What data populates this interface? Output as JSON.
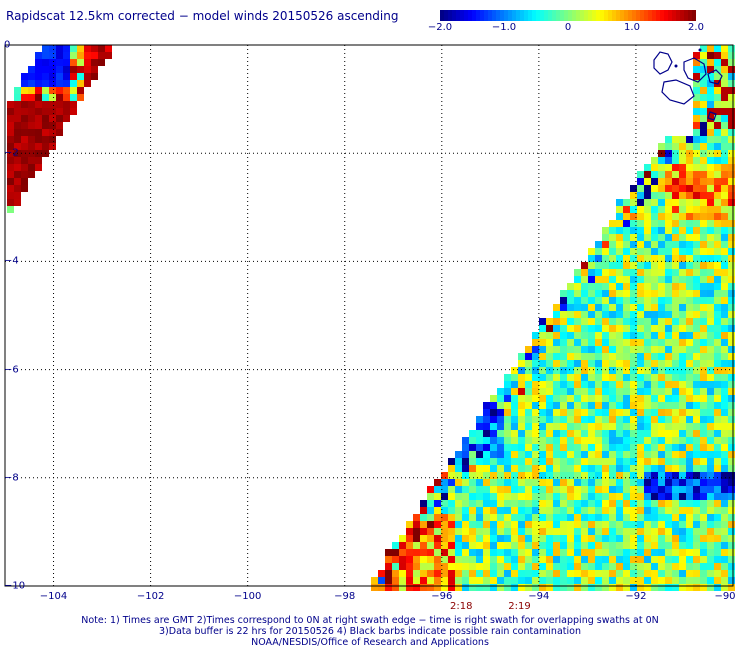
{
  "title": "Rapidscat 12.5km corrected − model winds 20150526 ascending",
  "colorbar": {
    "labels": [
      "−2.0",
      "−1.0",
      "0",
      "1.0",
      "2.0"
    ],
    "label_values": [
      -2,
      -1,
      0,
      1,
      2
    ],
    "range": [
      -2,
      2
    ]
  },
  "axes": {
    "lat_labels": [
      "0",
      "−2",
      "−4",
      "−6",
      "−8",
      "−10"
    ],
    "lat_values": [
      0,
      -2,
      -4,
      -6,
      -8,
      -10
    ],
    "lon_labels": [
      "−104",
      "−102",
      "−100",
      "−98",
      "−96",
      "−94",
      "−92",
      "−90"
    ],
    "lon_values": [
      -104,
      -102,
      -100,
      -98,
      -96,
      -94,
      -92,
      -90
    ],
    "lon_range": [
      -105,
      -90
    ],
    "lat_range": [
      -10,
      0
    ]
  },
  "time_labels": [
    {
      "text": "2:18",
      "lon": -95.6
    },
    {
      "text": "2:19",
      "lon": -94.4
    }
  ],
  "notes": [
    "Note: 1) Times are GMT 2)Times correspond to 0N at right swath edge − time is right swath for overlapping swaths at 0N",
    "3)Data buffer is 22 hrs for 20150526 4) Black barbs indicate possible rain contamination",
    "NOAA/NESDIS/Office of Research and Applications"
  ]
}
